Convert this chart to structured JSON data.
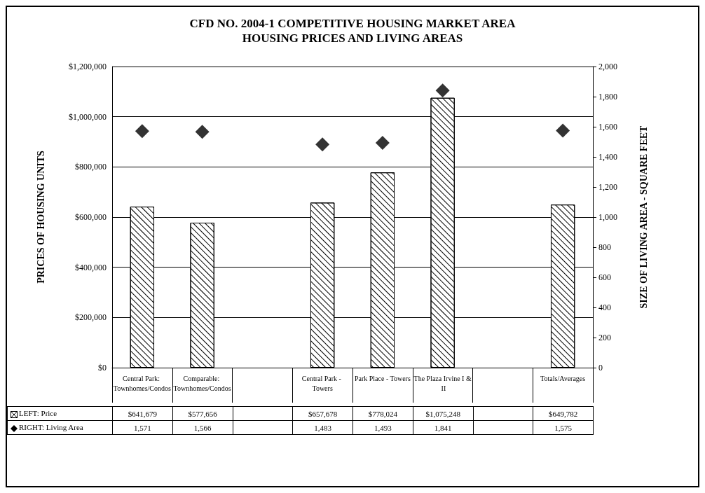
{
  "chart_data": {
    "type": "bar",
    "title": "CFD NO. 2004-1 COMPETITIVE HOUSING MARKET AREA",
    "subtitle": "HOUSING PRICES AND LIVING AREAS",
    "ylabel": "PRICES OF HOUSING UNITS",
    "y2label": "SIZE OF LIVING AREA - SQUARE FEET",
    "categories": [
      "Central Park: Townhomes/Condos",
      "Comparable: Townhomes/Condos",
      null,
      "Central Park - Towers",
      "Park Place - Towers",
      "The Plaza Irvine I & II",
      null,
      "Totals/Averages"
    ],
    "series": [
      {
        "name": "LEFT: Price",
        "color": "#ffffff",
        "values": [
          641679,
          577656,
          null,
          657678,
          778024,
          1075248,
          null,
          649782
        ],
        "value_labels": [
          "$641,679",
          "$577,656",
          null,
          "$657,678",
          "$778,024",
          "$1,075,248",
          null,
          "$649,782"
        ]
      },
      {
        "name": "RIGHT: Living Area",
        "type": "scatter",
        "axis": "y2",
        "color": "#000000",
        "marker": "diamond",
        "values": [
          1571,
          1566,
          null,
          1483,
          1493,
          1841,
          null,
          1575
        ],
        "value_labels": [
          "1,571",
          "1,566",
          null,
          "1,483",
          "1,493",
          "1,841",
          null,
          "1,575"
        ]
      }
    ],
    "ylim": [
      0,
      1200000
    ],
    "yticks": [
      {
        "value": 0,
        "label": "$0"
      },
      {
        "value": 200000,
        "label": "$200,000"
      },
      {
        "value": 400000,
        "label": "$400,000"
      },
      {
        "value": 600000,
        "label": "$600,000"
      },
      {
        "value": 800000,
        "label": "$800,000"
      },
      {
        "value": 1000000,
        "label": "$1,000,000"
      },
      {
        "value": 1200000,
        "label": "$1,200,000"
      }
    ],
    "y2lim": [
      0,
      2000
    ],
    "y2ticks": [
      0,
      200,
      400,
      600,
      800,
      {
        "value": 1000,
        "label": "1,000"
      },
      {
        "value": 1200,
        "label": "1,200"
      },
      {
        "value": 1400,
        "label": "1,400"
      },
      {
        "value": 1600,
        "label": "1,600"
      },
      {
        "value": 1800,
        "label": "1,800"
      },
      {
        "value": 2000,
        "label": "2,000"
      }
    ],
    "grid": "y",
    "legend": "bottom left"
  }
}
